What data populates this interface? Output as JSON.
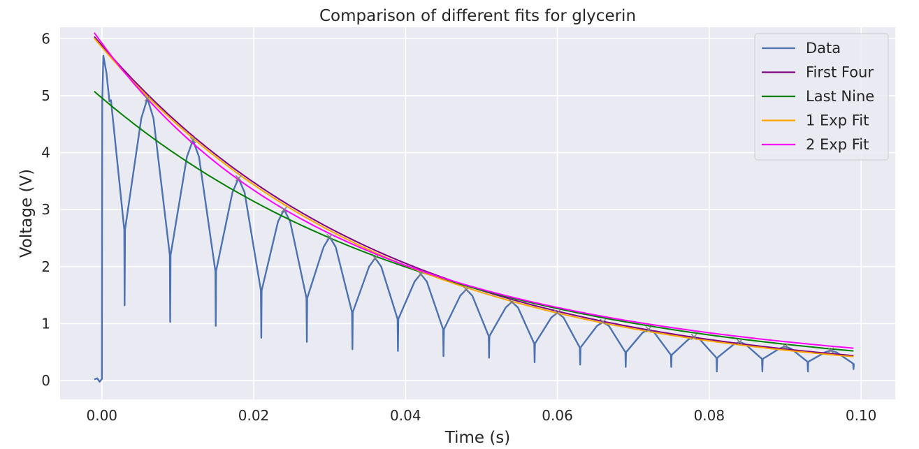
{
  "chart_data": {
    "type": "line",
    "title": "Comparison of different fits for glycerin",
    "xlabel": "Time (s)",
    "ylabel": "Voltage (V)",
    "xlim": [
      -0.0055,
      0.1045
    ],
    "ylim": [
      -0.33,
      6.2
    ],
    "xticks": [
      0.0,
      0.02,
      0.04,
      0.06,
      0.08,
      0.1
    ],
    "xtick_labels": [
      "0.00",
      "0.02",
      "0.04",
      "0.06",
      "0.08",
      "0.10"
    ],
    "yticks": [
      0,
      1,
      2,
      3,
      4,
      5,
      6
    ],
    "ytick_labels": [
      "0",
      "1",
      "2",
      "3",
      "4",
      "5",
      "6"
    ],
    "grid": true,
    "legend_position": "top-right",
    "data_series": {
      "name": "Data",
      "color": "#4c72b0",
      "start_time": -0.001,
      "end_time": 0.099,
      "initial_peak": 5.7,
      "period": 0.006,
      "peaks": [
        {
          "t": 0.006,
          "v": 4.95
        },
        {
          "t": 0.012,
          "v": 4.22
        },
        {
          "t": 0.018,
          "v": 3.55
        },
        {
          "t": 0.024,
          "v": 3.0
        },
        {
          "t": 0.03,
          "v": 2.52
        },
        {
          "t": 0.036,
          "v": 2.15
        },
        {
          "t": 0.042,
          "v": 1.87
        },
        {
          "t": 0.048,
          "v": 1.6
        },
        {
          "t": 0.054,
          "v": 1.38
        },
        {
          "t": 0.06,
          "v": 1.19
        },
        {
          "t": 0.066,
          "v": 1.03
        },
        {
          "t": 0.072,
          "v": 0.9
        },
        {
          "t": 0.078,
          "v": 0.77
        },
        {
          "t": 0.084,
          "v": 0.68
        },
        {
          "t": 0.09,
          "v": 0.6
        },
        {
          "t": 0.096,
          "v": 0.53
        }
      ],
      "valleys": [
        {
          "t": 0.003,
          "v": 2.65,
          "spike": 1.32
        },
        {
          "t": 0.009,
          "v": 2.2,
          "spike": 1.03
        },
        {
          "t": 0.015,
          "v": 1.92,
          "spike": 0.96
        },
        {
          "t": 0.021,
          "v": 1.58,
          "spike": 0.75
        },
        {
          "t": 0.027,
          "v": 1.45,
          "spike": 0.68
        },
        {
          "t": 0.033,
          "v": 1.2,
          "spike": 0.55
        },
        {
          "t": 0.039,
          "v": 1.08,
          "spike": 0.52
        },
        {
          "t": 0.045,
          "v": 0.9,
          "spike": 0.43
        },
        {
          "t": 0.051,
          "v": 0.78,
          "spike": 0.4
        },
        {
          "t": 0.057,
          "v": 0.65,
          "spike": 0.32
        },
        {
          "t": 0.063,
          "v": 0.58,
          "spike": 0.28
        },
        {
          "t": 0.069,
          "v": 0.5,
          "spike": 0.24
        },
        {
          "t": 0.075,
          "v": 0.45,
          "spike": 0.24
        },
        {
          "t": 0.081,
          "v": 0.4,
          "spike": 0.16
        },
        {
          "t": 0.087,
          "v": 0.38,
          "spike": 0.16
        },
        {
          "t": 0.093,
          "v": 0.33,
          "spike": 0.16
        },
        {
          "t": 0.099,
          "v": 0.3,
          "spike": 0.2
        }
      ]
    },
    "peak_marker_color": "#808080",
    "fit_series": [
      {
        "name": "First Four",
        "color": "#800080",
        "A": 5.88,
        "tau": 0.0381
      },
      {
        "name": "Last Nine",
        "color": "#008000",
        "A": 4.96,
        "tau": 0.0439
      },
      {
        "name": "1 Exp Fit",
        "color": "#ffa500",
        "A": 5.85,
        "tau": 0.0376
      },
      {
        "name": "2 Exp Fit",
        "color": "#ff00ff",
        "A1": 2.2,
        "tau1": 0.02,
        "A2": 3.72,
        "tau2": 0.052
      }
    ],
    "fit_range": [
      -0.001,
      0.099
    ]
  }
}
